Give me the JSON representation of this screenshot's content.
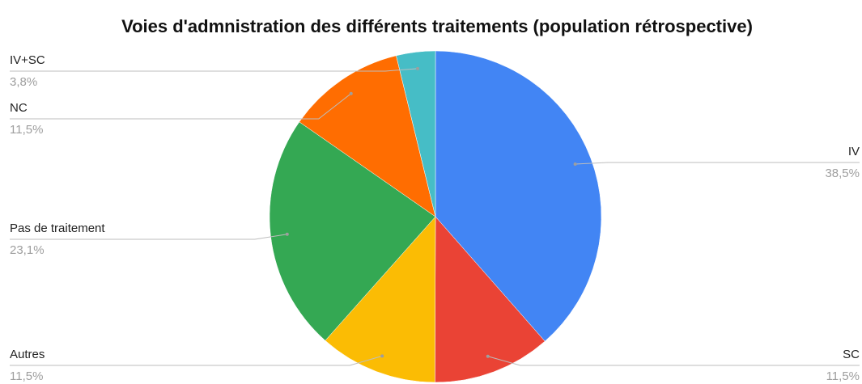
{
  "chart_data": {
    "type": "pie",
    "title": "Voies d'admnistration des différents traitements (population rétrospective)",
    "categories": [
      "IV",
      "SC",
      "Autres",
      "Pas de traitement",
      "NC",
      "IV+SC"
    ],
    "values": [
      38.5,
      11.5,
      11.5,
      23.1,
      11.5,
      3.8
    ],
    "value_labels": [
      "38,5%",
      "11,5%",
      "11,5%",
      "23,1%",
      "11,5%",
      "3,8%"
    ],
    "colors": [
      "#4285f4",
      "#ea4335",
      "#fbbc04",
      "#34a853",
      "#ff6d01",
      "#46bdc6"
    ]
  }
}
